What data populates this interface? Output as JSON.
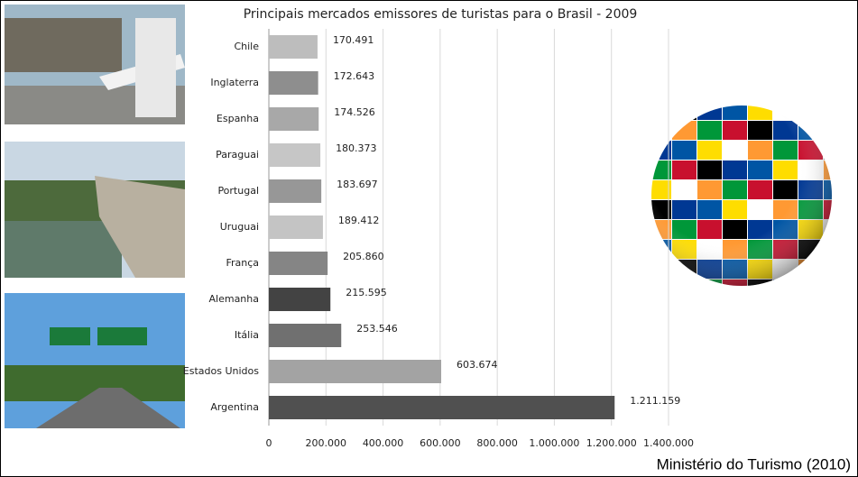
{
  "chart_data": {
    "type": "barh",
    "title": "Principais mercados emissores de turistas para o Brasil - 2009",
    "source": "Ministério do Turismo (2010)",
    "categories": [
      "Chile",
      "Inglaterra",
      "Espanha",
      "Paraguai",
      "Portugal",
      "Uruguai",
      "França",
      "Alemanha",
      "Itália",
      "Estados Unidos",
      "Argentina"
    ],
    "values": [
      170491,
      172643,
      174526,
      180373,
      183697,
      189412,
      205860,
      215595,
      253546,
      603674,
      1211159
    ],
    "value_labels": [
      "170.491",
      "172.643",
      "174.526",
      "180.373",
      "183.697",
      "189.412",
      "205.860",
      "215.595",
      "253.546",
      "603.674",
      "1.211.159"
    ],
    "colors": [
      "#bdbdbd",
      "#8e8e8e",
      "#a8a8a8",
      "#c6c6c6",
      "#979797",
      "#c4c4c4",
      "#858585",
      "#434343",
      "#707070",
      "#a3a3a3",
      "#505050"
    ],
    "xlim": [
      0,
      1400000
    ],
    "xticks": [
      0,
      {
        "value": 200000,
        "label": "200.000"
      },
      {
        "value": 400000,
        "label": "400.000"
      },
      {
        "value": 600000,
        "label": "600.000"
      },
      {
        "value": 800000,
        "label": "800.000"
      },
      {
        "value": 1000000,
        "label": "1.000.000"
      },
      {
        "value": 1200000,
        "label": "1.200.000"
      },
      {
        "value": 1400000,
        "label": "1.400.000"
      }
    ],
    "grid": true
  }
}
